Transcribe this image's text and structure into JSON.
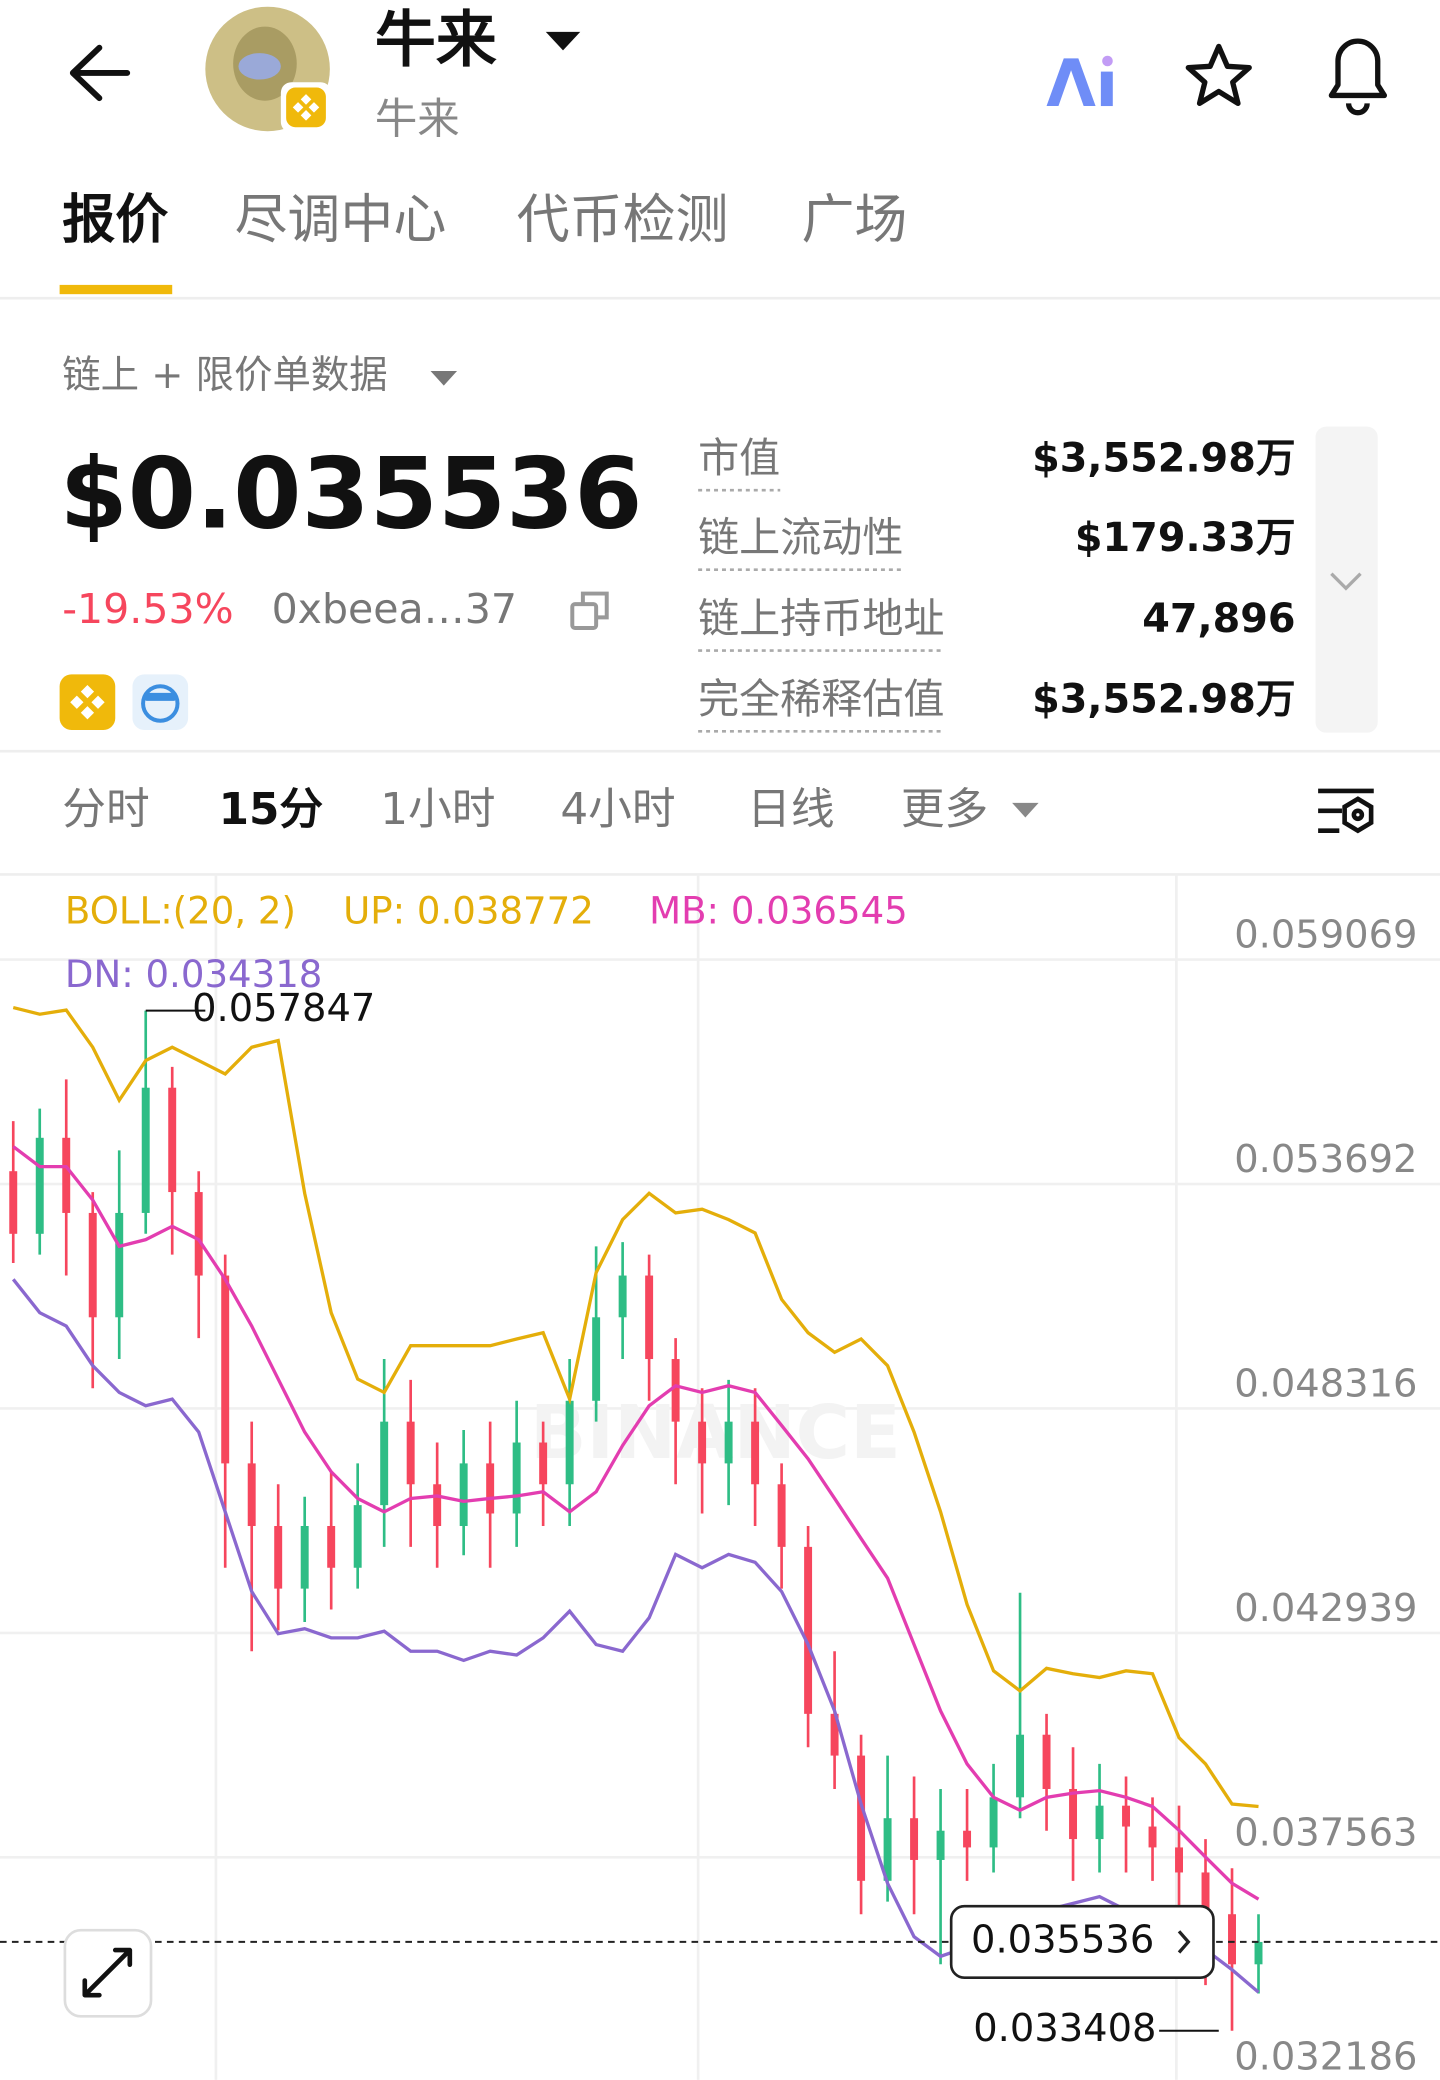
{
  "header": {
    "title": "牛来",
    "subtitle": "牛来"
  },
  "tabs": [
    "报价",
    "尽调中心",
    "代币检测",
    "广场"
  ],
  "data_source": "链上 + 限价单数据",
  "price": "$0.035536",
  "change": "-19.53%",
  "address": "0xbeea…37",
  "stats": [
    {
      "label": "市值",
      "value": "$3,552.98万"
    },
    {
      "label": "链上流动性",
      "value": "$179.33万"
    },
    {
      "label": "链上持币地址",
      "value": "47,896"
    },
    {
      "label": "完全稀释估值",
      "value": "$3,552.98万"
    }
  ],
  "timeframes": [
    "分时",
    "15分",
    "1小时",
    "4小时",
    "日线",
    "更多"
  ],
  "chart_data": {
    "type": "candlestick",
    "indicator": "BOLL:(20, 2)",
    "watermark": "BINANCE",
    "up_color": "#2ebd85",
    "down_color": "#f6465d",
    "open": [
      0.054,
      0.0525,
      0.0548,
      0.053,
      0.0505,
      0.053,
      0.056,
      0.0535,
      0.0515,
      0.047,
      0.0455,
      0.044,
      0.0455,
      0.0445,
      0.046,
      0.048,
      0.0465,
      0.0455,
      0.047,
      0.0458,
      0.0475,
      0.0465,
      0.0485,
      0.0505,
      0.0515,
      0.0495,
      0.048,
      0.047,
      0.048,
      0.0465,
      0.045,
      0.041,
      0.04,
      0.037,
      0.0385,
      0.0375,
      0.0382,
      0.0378,
      0.039,
      0.0405,
      0.0392,
      0.038,
      0.0388,
      0.0383,
      0.0378,
      0.0372,
      0.0362,
      0.035
    ],
    "high": [
      0.0552,
      0.0555,
      0.0562,
      0.0535,
      0.0545,
      0.057847,
      0.0565,
      0.054,
      0.052,
      0.048,
      0.0465,
      0.0462,
      0.0468,
      0.047,
      0.0495,
      0.049,
      0.0475,
      0.0478,
      0.048,
      0.0485,
      0.048,
      0.0495,
      0.0522,
      0.0523,
      0.052,
      0.05,
      0.0488,
      0.049,
      0.0488,
      0.047,
      0.0455,
      0.0425,
      0.0405,
      0.04,
      0.0395,
      0.0392,
      0.0392,
      0.0398,
      0.0439,
      0.041,
      0.0402,
      0.0398,
      0.0395,
      0.039,
      0.0388,
      0.038,
      0.0373,
      0.0362
    ],
    "low": [
      0.0518,
      0.052,
      0.0515,
      0.0488,
      0.0495,
      0.0525,
      0.052,
      0.05,
      0.0445,
      0.0425,
      0.043,
      0.0432,
      0.0435,
      0.044,
      0.045,
      0.045,
      0.0445,
      0.0448,
      0.0445,
      0.045,
      0.0455,
      0.0455,
      0.048,
      0.0495,
      0.0485,
      0.0465,
      0.0458,
      0.046,
      0.0455,
      0.044,
      0.0402,
      0.0392,
      0.0362,
      0.0365,
      0.0362,
      0.035,
      0.037,
      0.0372,
      0.0385,
      0.0382,
      0.037,
      0.0372,
      0.0372,
      0.037,
      0.0363,
      0.0345,
      0.033408,
      0.0343
    ],
    "close": [
      0.0525,
      0.0548,
      0.053,
      0.0505,
      0.053,
      0.056,
      0.0535,
      0.0515,
      0.047,
      0.0455,
      0.044,
      0.0455,
      0.0445,
      0.046,
      0.048,
      0.0465,
      0.0455,
      0.047,
      0.0458,
      0.0475,
      0.0465,
      0.0485,
      0.0505,
      0.0515,
      0.0495,
      0.048,
      0.047,
      0.048,
      0.0465,
      0.045,
      0.041,
      0.04,
      0.037,
      0.0385,
      0.0375,
      0.0382,
      0.0378,
      0.039,
      0.0405,
      0.0392,
      0.038,
      0.0388,
      0.0383,
      0.0378,
      0.0372,
      0.0362,
      0.035,
      0.035536
    ],
    "series": [
      {
        "name": "UP: 0.038772",
        "color": "#e4ae0a",
        "values": [
          0.05792,
          0.05776,
          0.05786,
          0.05697,
          0.0557,
          0.05665,
          0.05697,
          0.05665,
          0.05633,
          0.05697,
          0.05713,
          0.05347,
          0.05061,
          0.04902,
          0.0487,
          0.04982,
          0.04982,
          0.04982,
          0.04982,
          0.04998,
          0.05013,
          0.04854,
          0.05157,
          0.05284,
          0.05347,
          0.053,
          0.05309,
          0.05284,
          0.05252,
          0.05093,
          0.05013,
          0.04966,
          0.04998,
          0.04934,
          0.04775,
          0.04584,
          0.04362,
          0.04203,
          0.04155,
          0.04209,
          0.04196,
          0.04187,
          0.04203,
          0.04196,
          0.04043,
          0.0398,
          0.03884,
          0.03878
        ]
      },
      {
        "name": "MB: 0.036545",
        "color": "#e33db0",
        "values": [
          0.05459,
          0.05411,
          0.05411,
          0.05331,
          0.0522,
          0.05236,
          0.05268,
          0.05236,
          0.05141,
          0.05029,
          0.04902,
          0.04775,
          0.0468,
          0.04616,
          0.04584,
          0.04616,
          0.04622,
          0.04609,
          0.04616,
          0.04622,
          0.04632,
          0.04584,
          0.04632,
          0.04743,
          0.04838,
          0.04886,
          0.0487,
          0.04886,
          0.0487,
          0.04791,
          0.04711,
          0.04616,
          0.0452,
          0.04425,
          0.04266,
          0.04107,
          0.0398,
          0.039,
          0.03869,
          0.039,
          0.0391,
          0.03916,
          0.039,
          0.03878,
          0.03821,
          0.03757,
          0.03694,
          0.03656
        ]
      },
      {
        "name": "DN: 0.034318",
        "color": "#8a68cf",
        "values": [
          0.05141,
          0.05061,
          0.05029,
          0.04934,
          0.0487,
          0.04838,
          0.04854,
          0.04775,
          0.04584,
          0.04393,
          0.04292,
          0.04304,
          0.04282,
          0.04282,
          0.04298,
          0.0425,
          0.0425,
          0.04228,
          0.0425,
          0.04241,
          0.04282,
          0.04346,
          0.04266,
          0.0425,
          0.0433,
          0.04482,
          0.0445,
          0.04482,
          0.04463,
          0.04393,
          0.04266,
          0.04107,
          0.03884,
          0.03694,
          0.03566,
          0.03519,
          0.03541,
          0.03541,
          0.03551,
          0.0363,
          0.03646,
          0.03662,
          0.0363,
          0.03598,
          0.03566,
          0.03535,
          0.03487,
          0.03433
        ]
      }
    ],
    "ylim": [
      0.03223,
      0.06111
    ],
    "yticks": [
      0.059069,
      0.053692,
      0.048316,
      0.042939,
      0.037563,
      0.032186
    ],
    "grid": true,
    "high_label": 0.057847,
    "low_label": 0.033408,
    "last_price": 0.035536
  }
}
